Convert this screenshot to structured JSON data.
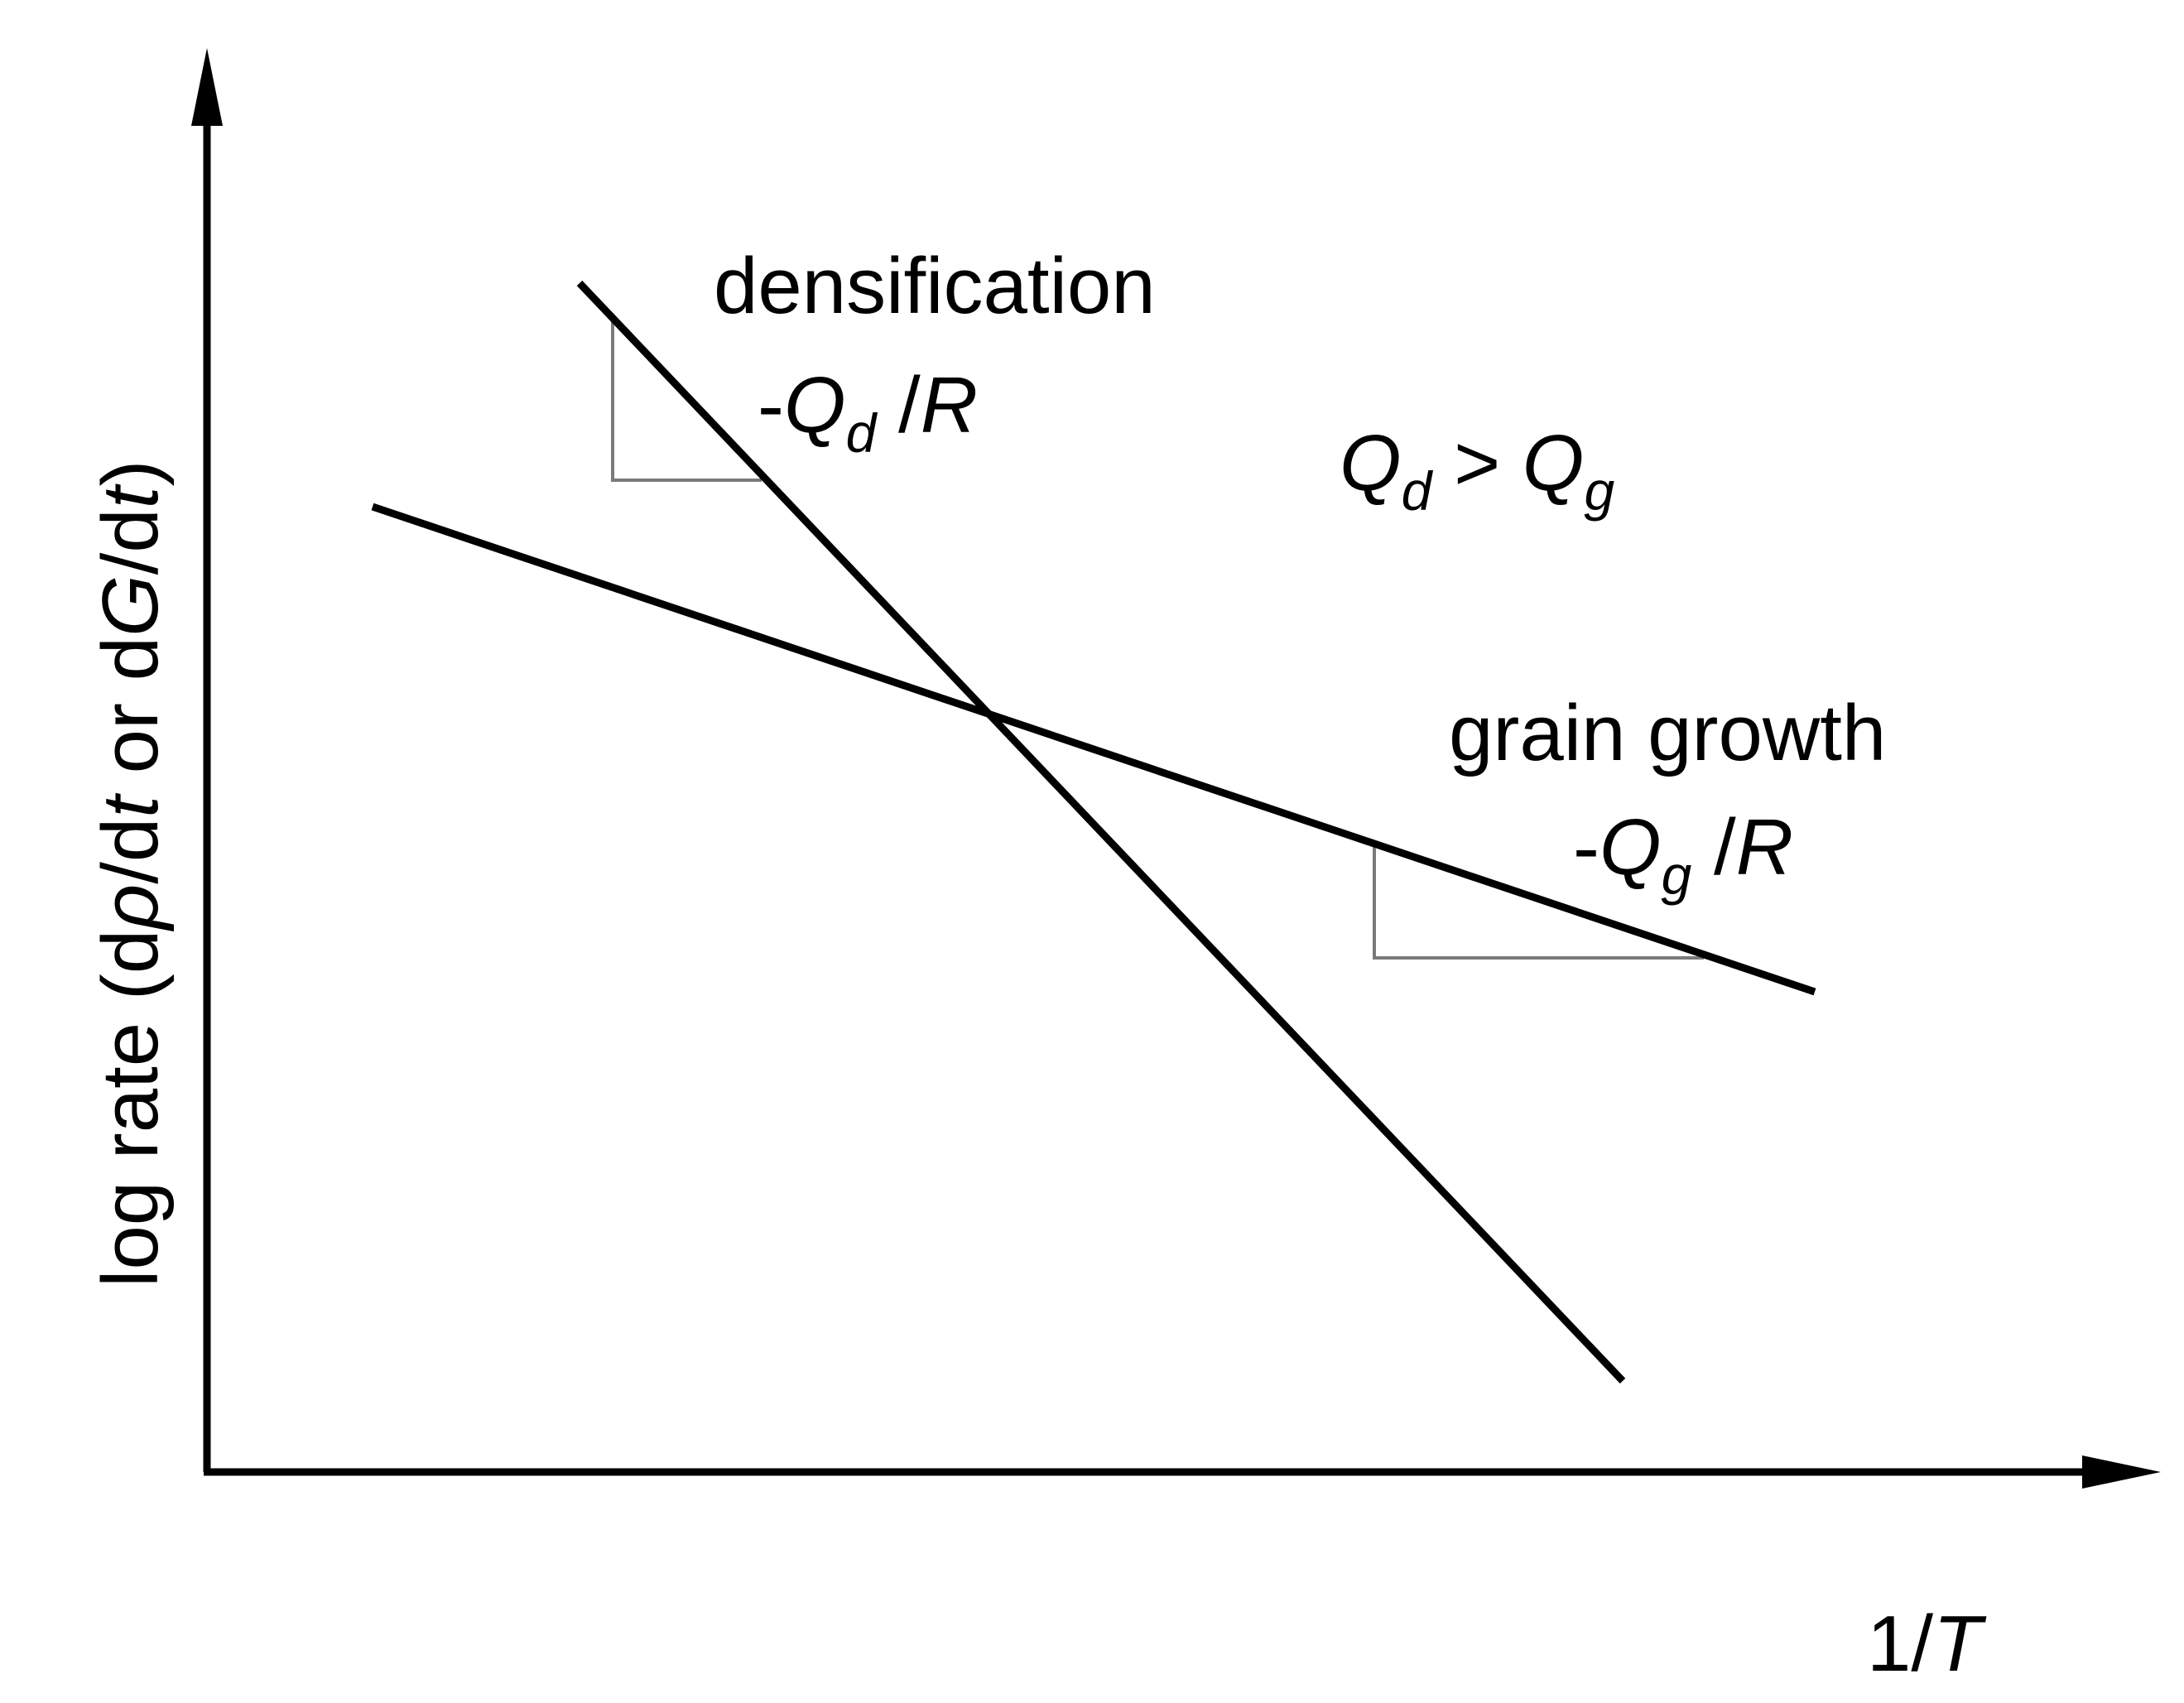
{
  "colors": {
    "axis": "#000000",
    "line": "#000000",
    "slope_triangle": "#7a7a7a",
    "background": "#ffffff"
  },
  "axes": {
    "y_label": {
      "prefix": "log rate (d",
      "rho": "ρ",
      "mid1": "/d",
      "t1": "t",
      "mid2": " or d",
      "G": "G",
      "mid3": "/d",
      "t2": "t",
      "suffix": ")"
    },
    "x_label": {
      "num": "1/",
      "T": "T"
    }
  },
  "lines": {
    "densification": {
      "name": "densification",
      "slope_prefix": "-",
      "Q": "Q",
      "subscript": "d",
      "slope_suffix": " /",
      "R": "R"
    },
    "grain_growth": {
      "name": "grain growth",
      "slope_prefix": "-",
      "Q": "Q",
      "subscript": "g",
      "slope_suffix": " /",
      "R": "R"
    }
  },
  "relation": {
    "Q1": "Q",
    "sub1": "d",
    "op": " > ",
    "Q2": "Q",
    "sub2": "g"
  }
}
